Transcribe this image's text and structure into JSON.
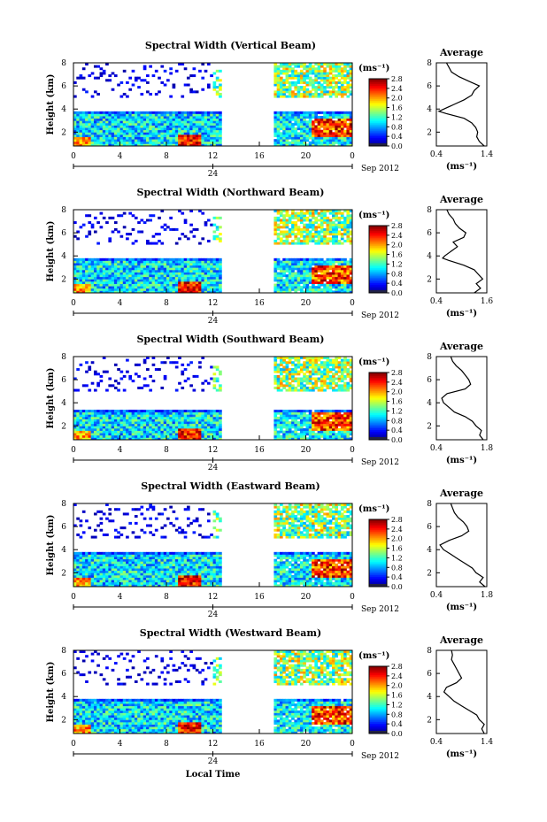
{
  "chart_data": [
    {
      "type": "heatmap",
      "title": "Spectral Width (Vertical Beam)",
      "ylabel": "Height (km)",
      "x_ticks": [
        "0",
        "4",
        "8",
        "12",
        "16",
        "20",
        "0"
      ],
      "date_marker": "24",
      "date_label": "Sep 2012",
      "y_ticks": [
        "2",
        "4",
        "6",
        "8"
      ],
      "ylim": [
        0.8,
        8
      ],
      "xlim": [
        0,
        24
      ],
      "colorbar": {
        "unit": "(ms⁻¹)",
        "ticks": [
          "0.0",
          "0.4",
          "0.8",
          "1.2",
          "1.6",
          "2.0",
          "2.4",
          "2.8"
        ],
        "range": [
          0,
          2.8
        ]
      },
      "data_gaps_hours": [
        [
          12.8,
          17.2
        ]
      ],
      "lower_layer_top_km": 3.8,
      "average_profile": {
        "title": "Average",
        "xlabel": "(ms⁻¹)",
        "x_ticks": [
          "0.4",
          "1.4"
        ],
        "xlim": [
          0.4,
          1.4
        ],
        "y_ticks": [
          "2",
          "4",
          "6",
          "8"
        ],
        "height_km": [
          0.8,
          1.2,
          1.6,
          2.0,
          2.4,
          2.8,
          3.2,
          3.6,
          3.8,
          4.0,
          4.4,
          4.8,
          5.2,
          5.6,
          6.0,
          6.4,
          6.8,
          7.2,
          7.6,
          8.0
        ],
        "width_ms": [
          1.35,
          1.25,
          1.2,
          1.22,
          1.18,
          1.1,
          0.95,
          0.6,
          0.45,
          0.55,
          0.75,
          0.95,
          1.1,
          1.15,
          1.25,
          1.05,
          0.85,
          0.7,
          0.65,
          0.6
        ]
      }
    },
    {
      "type": "heatmap",
      "title": "Spectral Width (Northward Beam)",
      "ylabel": "Height (km)",
      "x_ticks": [
        "0",
        "4",
        "8",
        "12",
        "16",
        "20",
        "0"
      ],
      "date_marker": "24",
      "date_label": "Sep 2012",
      "y_ticks": [
        "2",
        "4",
        "6",
        "8"
      ],
      "ylim": [
        0.8,
        8
      ],
      "xlim": [
        0,
        24
      ],
      "colorbar": {
        "unit": "(ms⁻¹)",
        "ticks": [
          "0.0",
          "0.4",
          "0.8",
          "1.2",
          "1.6",
          "2.0",
          "2.4",
          "2.8"
        ],
        "range": [
          0,
          2.8
        ]
      },
      "data_gaps_hours": [
        [
          12.8,
          17.2
        ]
      ],
      "lower_layer_top_km": 3.8,
      "average_profile": {
        "title": "Average",
        "xlabel": "(ms⁻¹)",
        "x_ticks": [
          "0.4",
          "1.6"
        ],
        "xlim": [
          0.4,
          1.6
        ],
        "y_ticks": [
          "2",
          "4",
          "6",
          "8"
        ],
        "height_km": [
          0.8,
          1.2,
          1.6,
          2.0,
          2.4,
          2.8,
          3.2,
          3.6,
          3.8,
          4.0,
          4.4,
          4.8,
          5.2,
          5.6,
          6.0,
          6.4,
          6.8,
          7.2,
          7.6,
          8.0
        ],
        "width_ms": [
          1.3,
          1.45,
          1.35,
          1.5,
          1.4,
          1.3,
          1.05,
          0.7,
          0.55,
          0.6,
          0.75,
          0.9,
          0.8,
          1.05,
          1.1,
          0.95,
          0.85,
          0.8,
          0.7,
          0.65
        ]
      }
    },
    {
      "type": "heatmap",
      "title": "Spectral Width (Southward Beam)",
      "ylabel": "Height (km)",
      "x_ticks": [
        "0",
        "4",
        "8",
        "12",
        "16",
        "20",
        "0"
      ],
      "date_marker": "24",
      "date_label": "Sep 2012",
      "y_ticks": [
        "2",
        "4",
        "6",
        "8"
      ],
      "ylim": [
        0.8,
        8
      ],
      "xlim": [
        0,
        24
      ],
      "colorbar": {
        "unit": "(ms⁻¹)",
        "ticks": [
          "0.0",
          "0.4",
          "0.8",
          "1.2",
          "1.6",
          "2.0",
          "2.4",
          "2.8"
        ],
        "range": [
          0,
          2.8
        ]
      },
      "data_gaps_hours": [
        [
          12.8,
          17.2
        ]
      ],
      "lower_layer_top_km": 3.4,
      "average_profile": {
        "title": "Average",
        "xlabel": "(ms⁻¹)",
        "x_ticks": [
          "0.4",
          "1.8"
        ],
        "xlim": [
          0.4,
          1.8
        ],
        "y_ticks": [
          "2",
          "4",
          "6",
          "8"
        ],
        "height_km": [
          0.8,
          1.2,
          1.6,
          2.0,
          2.4,
          2.8,
          3.2,
          3.6,
          4.0,
          4.4,
          4.8,
          5.2,
          5.6,
          6.0,
          6.4,
          6.8,
          7.2,
          7.6,
          8.0
        ],
        "width_ms": [
          1.7,
          1.6,
          1.65,
          1.5,
          1.4,
          1.2,
          0.9,
          0.75,
          0.6,
          0.55,
          0.7,
          1.2,
          1.35,
          1.3,
          1.2,
          1.1,
          0.95,
          0.85,
          0.8
        ]
      }
    },
    {
      "type": "heatmap",
      "title": "Spectral Width (Eastward Beam)",
      "ylabel": "Height (km)",
      "x_ticks": [
        "0",
        "4",
        "8",
        "12",
        "16",
        "20",
        "0"
      ],
      "date_marker": "24",
      "date_label": "Sep 2012",
      "y_ticks": [
        "2",
        "4",
        "6",
        "8"
      ],
      "ylim": [
        0.8,
        8
      ],
      "xlim": [
        0,
        24
      ],
      "colorbar": {
        "unit": "(ms⁻¹)",
        "ticks": [
          "0.0",
          "0.4",
          "0.8",
          "1.2",
          "1.6",
          "2.0",
          "2.4",
          "2.8"
        ],
        "range": [
          0,
          2.8
        ]
      },
      "data_gaps_hours": [
        [
          12.8,
          17.2
        ]
      ],
      "lower_layer_top_km": 3.8,
      "average_profile": {
        "title": "Average",
        "xlabel": "(ms⁻¹)",
        "x_ticks": [
          "0.4",
          "1.8"
        ],
        "xlim": [
          0.4,
          1.8
        ],
        "y_ticks": [
          "2",
          "4",
          "6",
          "8"
        ],
        "height_km": [
          0.8,
          1.2,
          1.6,
          2.0,
          2.4,
          2.8,
          3.2,
          3.6,
          4.0,
          4.4,
          4.8,
          5.2,
          5.6,
          6.0,
          6.4,
          6.8,
          7.2,
          7.6,
          8.0
        ],
        "width_ms": [
          1.75,
          1.6,
          1.7,
          1.5,
          1.4,
          1.2,
          1.0,
          0.8,
          0.6,
          0.5,
          0.75,
          1.1,
          1.3,
          1.25,
          1.15,
          1.0,
          0.9,
          0.85,
          0.8
        ]
      }
    },
    {
      "type": "heatmap",
      "title": "Spectral Width (Westward Beam)",
      "ylabel": "Height (km)",
      "xlabel": "Local Time",
      "x_ticks": [
        "0",
        "4",
        "8",
        "12",
        "16",
        "20",
        "0"
      ],
      "date_marker": "24",
      "date_label": "Sep 2012",
      "y_ticks": [
        "2",
        "4",
        "6",
        "8"
      ],
      "ylim": [
        0.8,
        8
      ],
      "xlim": [
        0,
        24
      ],
      "colorbar": {
        "unit": "(ms⁻¹)",
        "ticks": [
          "0.0",
          "0.4",
          "0.8",
          "1.2",
          "1.6",
          "2.0",
          "2.4",
          "2.8"
        ],
        "range": [
          0,
          2.8
        ]
      },
      "data_gaps_hours": [
        [
          12.8,
          17.2
        ]
      ],
      "lower_layer_top_km": 3.8,
      "average_profile": {
        "title": "Average",
        "xlabel": "(ms⁻¹)",
        "x_ticks": [
          "0.4",
          "1.4"
        ],
        "xlim": [
          0.4,
          1.4
        ],
        "y_ticks": [
          "2",
          "4",
          "6",
          "8"
        ],
        "height_km": [
          0.8,
          1.2,
          1.6,
          2.0,
          2.4,
          2.8,
          3.2,
          3.6,
          4.0,
          4.4,
          4.8,
          5.2,
          5.6,
          6.0,
          6.4,
          6.8,
          7.2,
          7.6,
          8.0
        ],
        "width_ms": [
          1.35,
          1.3,
          1.35,
          1.25,
          1.2,
          1.05,
          0.9,
          0.75,
          0.65,
          0.55,
          0.6,
          0.8,
          0.9,
          0.85,
          0.8,
          0.75,
          0.7,
          0.72,
          0.7
        ]
      }
    }
  ]
}
